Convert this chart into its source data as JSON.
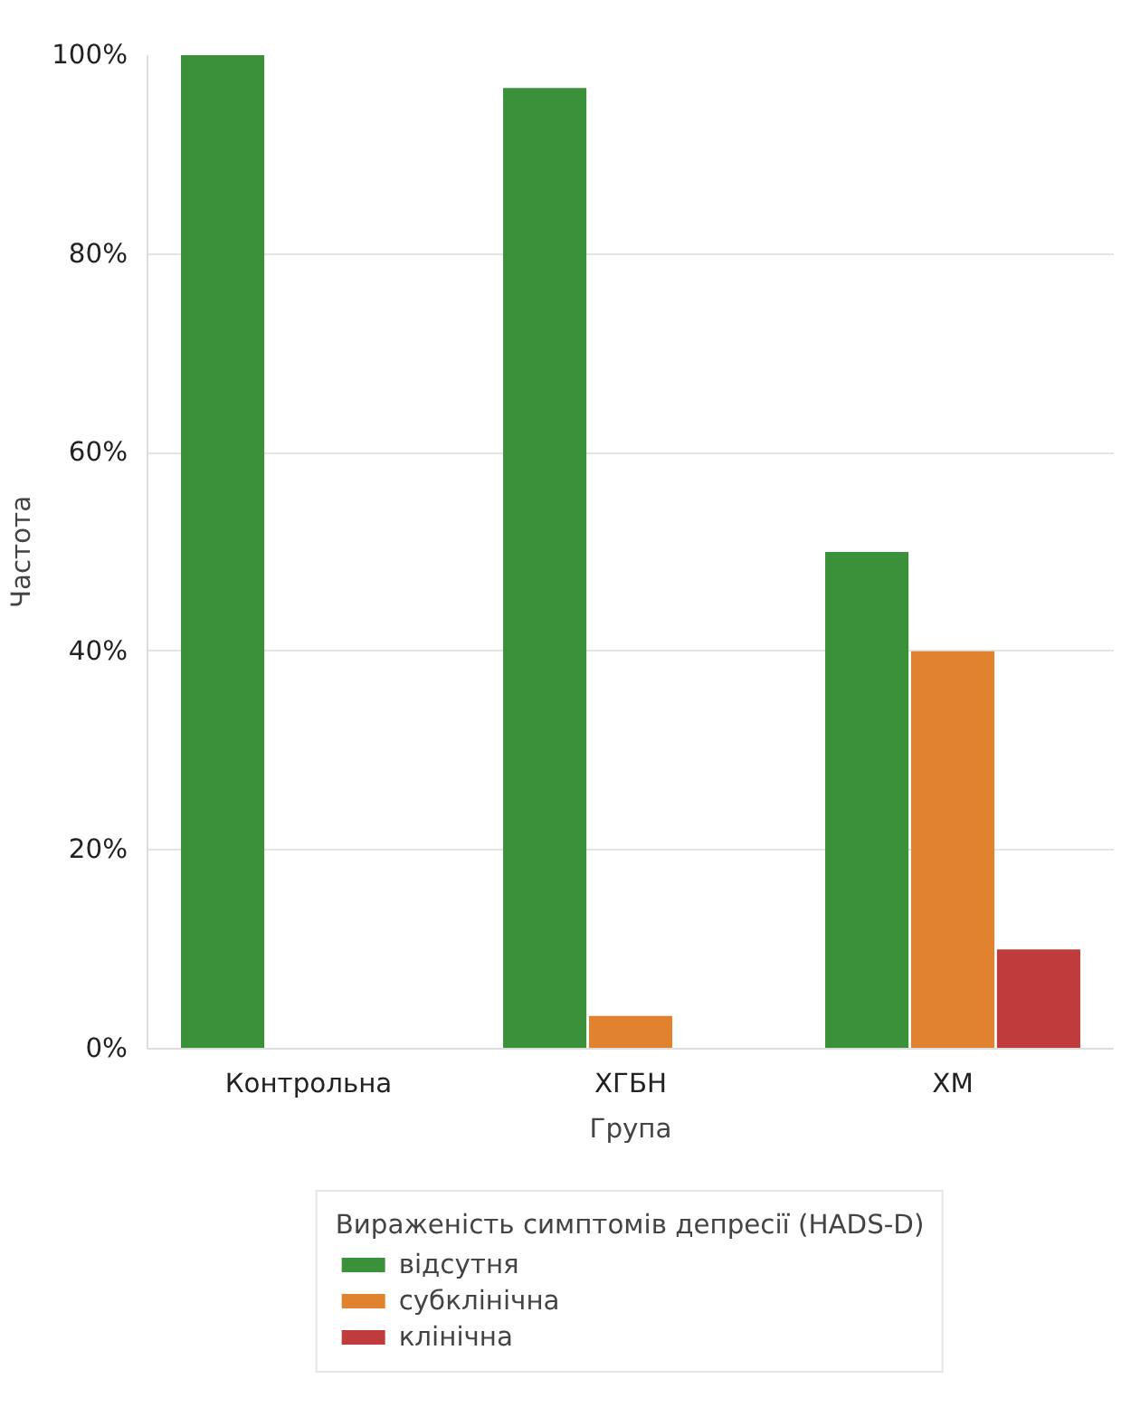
{
  "chart_data": {
    "type": "bar",
    "xlabel": "Група",
    "ylabel": "Частота",
    "legend_title": "Вираженість симптомів депресії (HADS-D)",
    "categories": [
      "Контрольна",
      "ХГБН",
      "ХМ"
    ],
    "series": [
      {
        "name": "відсутня",
        "color": "#3a913a",
        "values": [
          100,
          96.7,
          50
        ]
      },
      {
        "name": "субклінічна",
        "color": "#e0822e",
        "values": [
          0,
          3.3,
          40
        ]
      },
      {
        "name": "клінічна",
        "color": "#c03c3c",
        "values": [
          0,
          0,
          10
        ]
      }
    ],
    "ylim": [
      0,
      100
    ],
    "yticks": [
      {
        "value": 0,
        "label": "0%"
      },
      {
        "value": 20,
        "label": "20%"
      },
      {
        "value": 40,
        "label": "40%"
      },
      {
        "value": 60,
        "label": "60%"
      },
      {
        "value": 80,
        "label": "80%"
      },
      {
        "value": 100,
        "label": "100%"
      }
    ],
    "grid": "y",
    "legend": "bottom"
  }
}
